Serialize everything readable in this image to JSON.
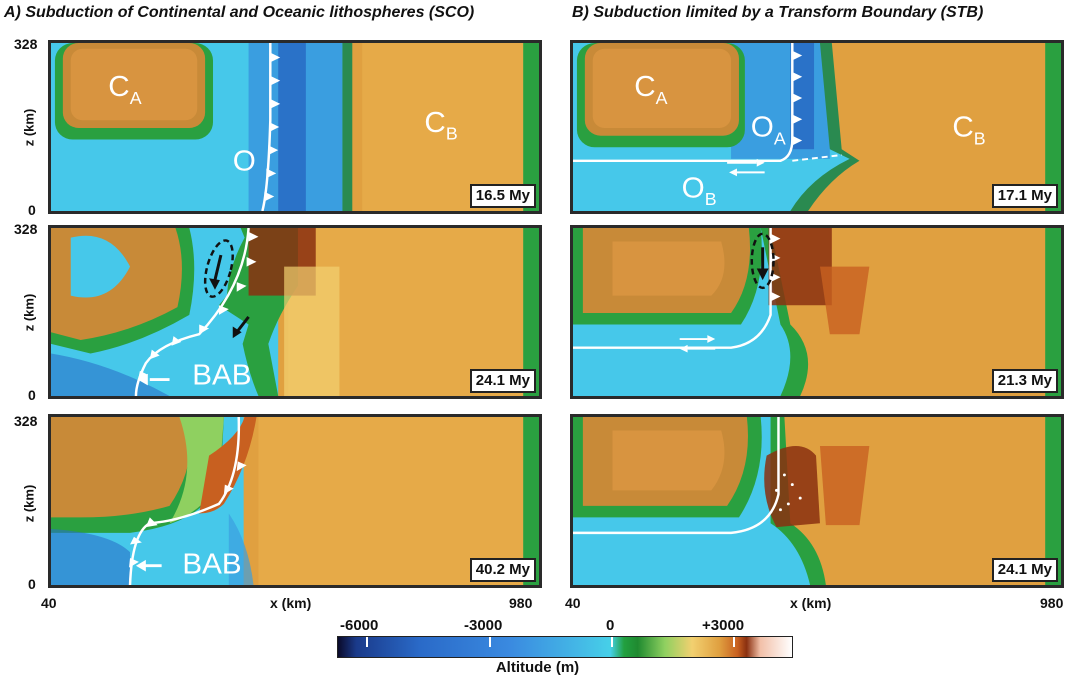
{
  "titles": {
    "left": "A) Subduction of Continental and Oceanic lithospheres (SCO)",
    "right": "B) Subduction limited by a Transform Boundary (STB)"
  },
  "panels": {
    "a1": {
      "time": "16.5 My",
      "labels": [
        "C",
        "A",
        "C",
        "B",
        "O"
      ]
    },
    "a2": {
      "time": "24.1 My",
      "labels": [
        "BAB"
      ]
    },
    "a3": {
      "time": "40.2 My",
      "labels": [
        "BAB"
      ]
    },
    "b1": {
      "time": "17.1 My",
      "labels": [
        "C",
        "A",
        "O",
        "A",
        "C",
        "B",
        "O",
        "B"
      ]
    },
    "b2": {
      "time": "21.3 My"
    },
    "b3": {
      "time": "24.1 My"
    }
  },
  "axes": {
    "z_label": "z (km)",
    "z_top": "328",
    "z_bottom": "0",
    "x_label": "x (km)",
    "x_min": "40",
    "x_max": "980"
  },
  "colorbar": {
    "title": "Altitude (m)",
    "ticks": [
      "-6000",
      "-3000",
      "0",
      "+3000"
    ]
  },
  "colors": {
    "ocean_deep": "#2a6ac8",
    "ocean": "#46c8ea",
    "shelf": "#22a040",
    "continent": "#e0a040",
    "highland": "#8a3010"
  }
}
